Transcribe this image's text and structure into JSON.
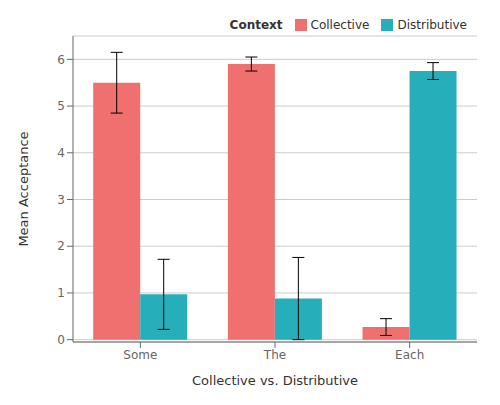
{
  "chart_data": {
    "type": "bar",
    "categories": [
      "Some",
      "The",
      "Each"
    ],
    "series": [
      {
        "name": "Collective",
        "color": "#F07070",
        "values": [
          5.5,
          5.9,
          0.27
        ],
        "errors": [
          0.65,
          0.15,
          0.18
        ]
      },
      {
        "name": "Distributive",
        "color": "#27AEBB",
        "values": [
          0.97,
          0.88,
          5.75
        ],
        "errors": [
          0.75,
          0.88,
          0.18
        ]
      }
    ],
    "xlabel": "Collective vs. Distributive",
    "ylabel": "Mean Acceptance",
    "legend_title": "Context",
    "ylim": [
      -0.05,
      6.5
    ],
    "yticks": [
      0,
      1,
      2,
      3,
      4,
      5,
      6
    ],
    "grid": true,
    "legend": "upper right"
  }
}
